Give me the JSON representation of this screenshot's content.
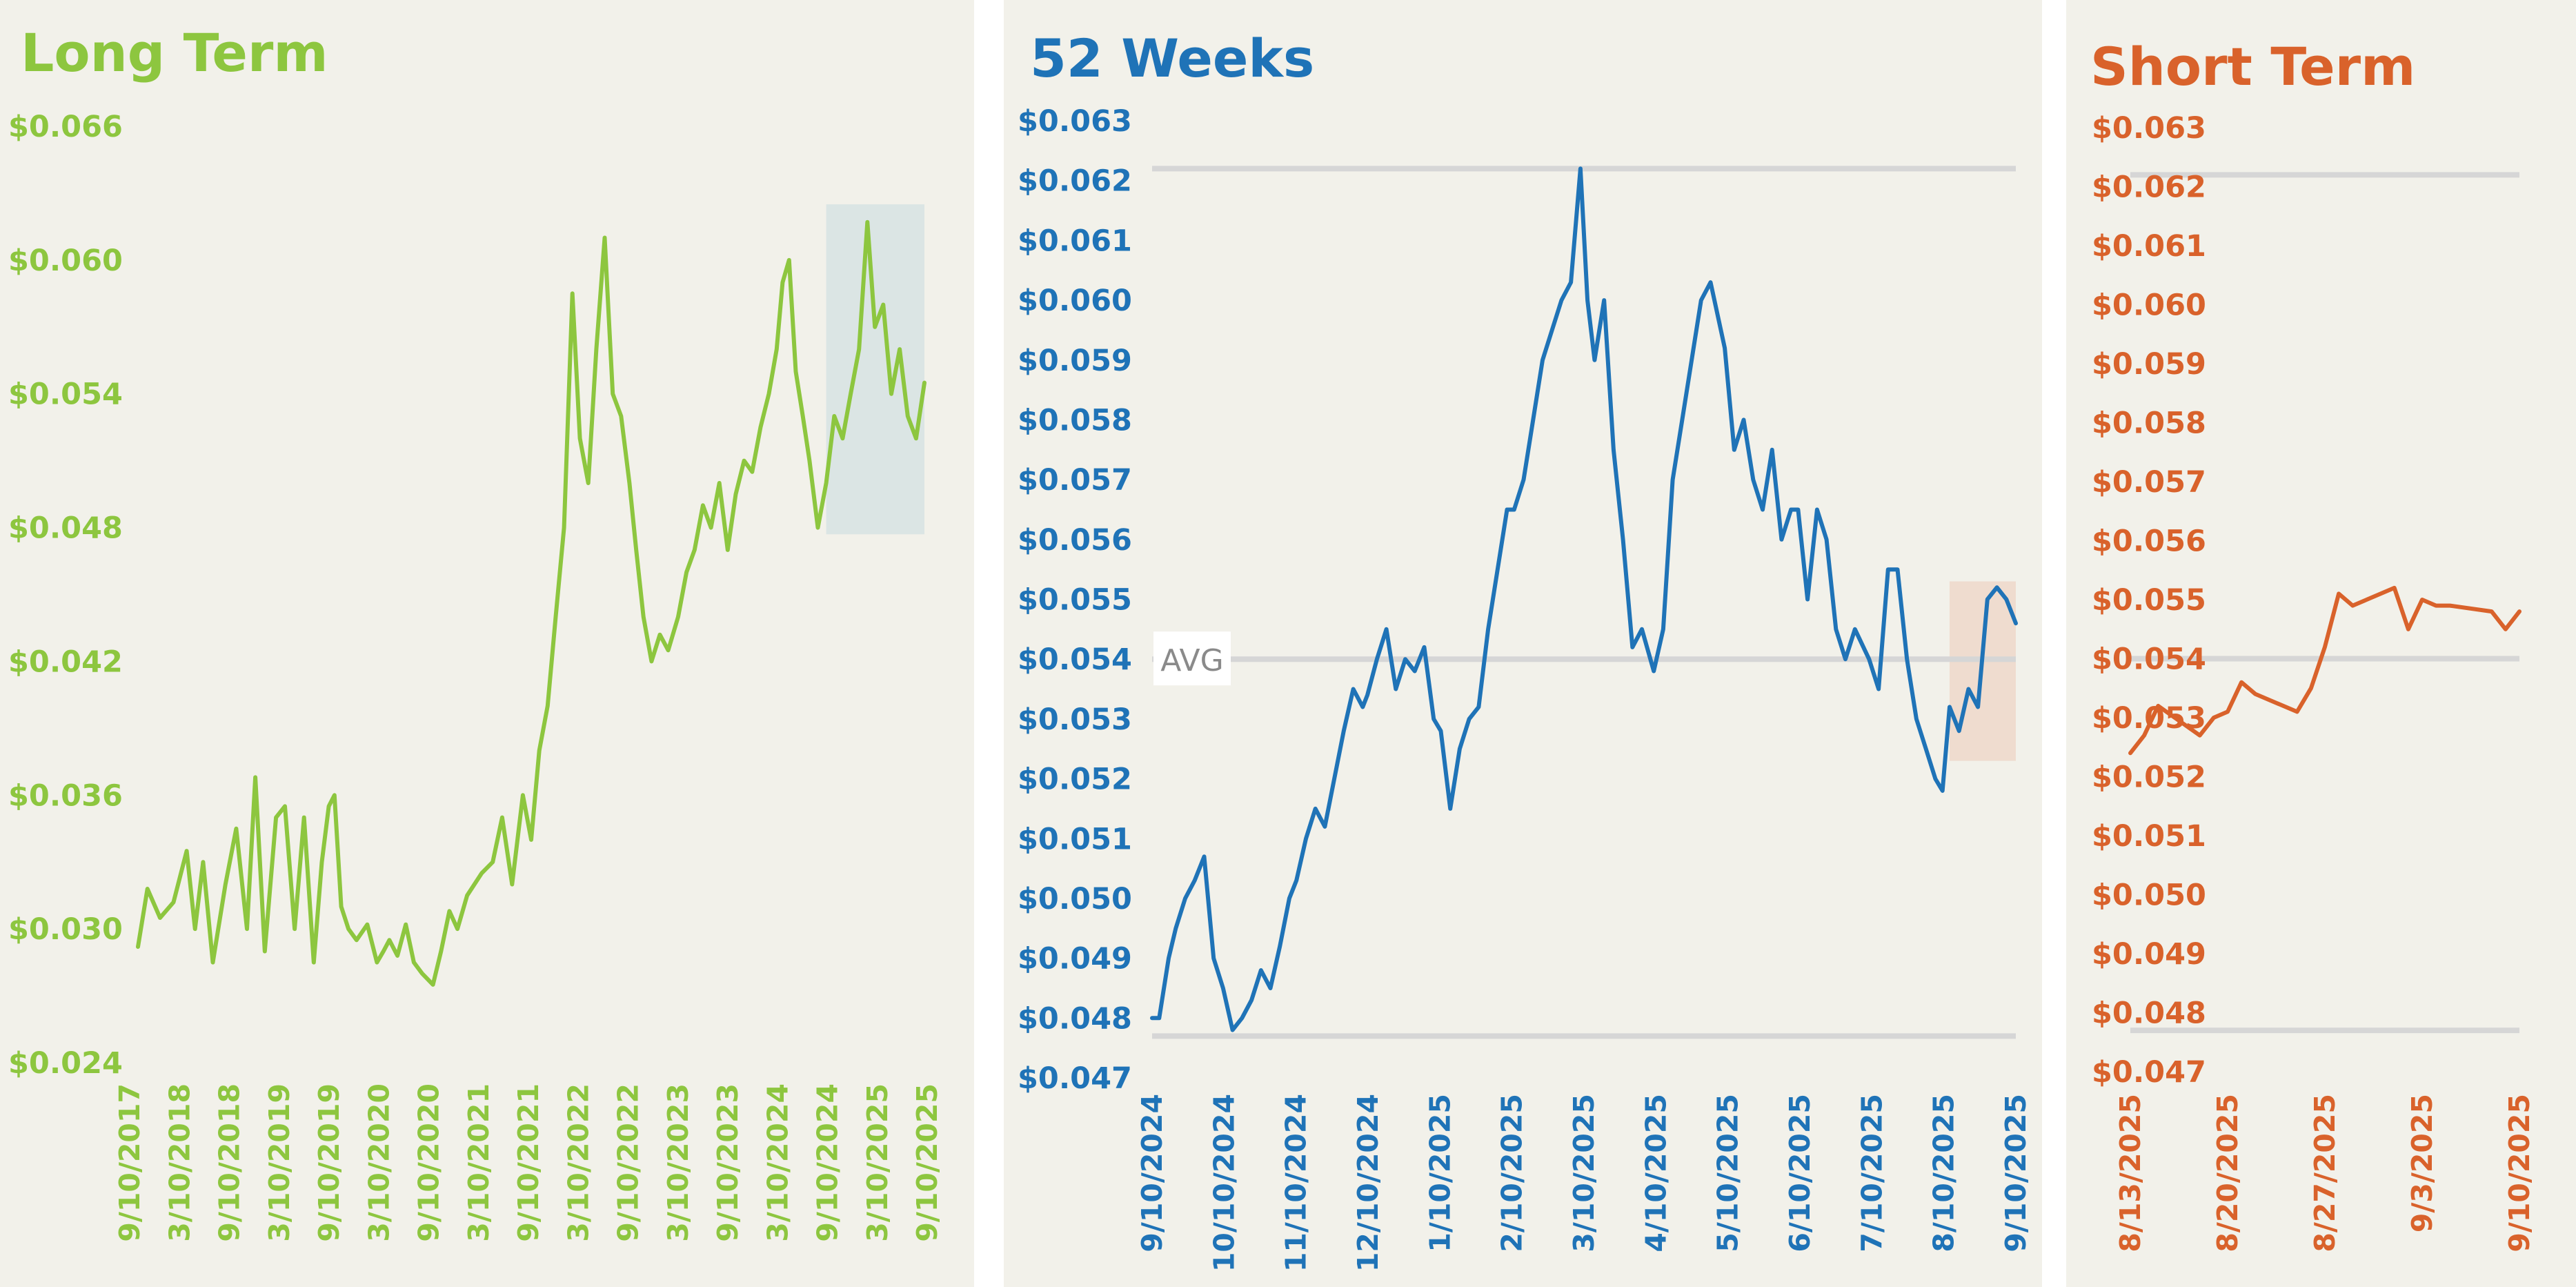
{
  "colors": {
    "long_term": "#8dc63f",
    "weeks52": "#1f73b7",
    "short_term": "#d9622b",
    "background": "#f2f1ea",
    "reference_lines": "#d6d6d6",
    "long_highlight": "#dbe5e4",
    "weeks_highlight": "#efdccf"
  },
  "chart_data": [
    {
      "type": "line",
      "title": "Long Term",
      "x_ticks": [
        "9/10/2017",
        "3/10/2018",
        "9/10/2018",
        "3/10/2019",
        "9/10/2019",
        "3/10/2020",
        "9/10/2020",
        "3/10/2021",
        "9/10/2021",
        "3/10/2022",
        "9/10/2022",
        "3/10/2023",
        "9/10/2023",
        "3/10/2024",
        "9/10/2024",
        "3/10/2025",
        "9/10/2025"
      ],
      "y_ticks": [
        "$0.066",
        "$0.060",
        "$0.054",
        "$0.048",
        "$0.042",
        "$0.036",
        "$0.030",
        "$0.024"
      ],
      "ylim": [
        0.024,
        0.066
      ],
      "xlim": [
        "9/10/2017",
        "9/10/2025"
      ],
      "highlight": {
        "x_start": "9/10/2024",
        "x_end": "9/10/2025",
        "y_min": 0.0477,
        "y_max": 0.0625
      },
      "series": [
        {
          "x": [
            "9/10/2017",
            "10/15/2017",
            "12/1/2017",
            "1/20/2018",
            "3/10/2018",
            "4/10/2018",
            "5/10/2018",
            "6/15/2018",
            "8/1/2018",
            "9/10/2018",
            "10/20/2018",
            "11/20/2018",
            "12/25/2018",
            "2/5/2019",
            "3/10/2019",
            "4/15/2019",
            "5/20/2019",
            "6/25/2019",
            "7/25/2019",
            "8/20/2019",
            "9/10/2019",
            "10/5/2019",
            "11/1/2019",
            "12/1/2019",
            "1/10/2020",
            "2/15/2020",
            "3/10/2020",
            "4/1/2020",
            "5/1/2020",
            "6/1/2020",
            "7/1/2020",
            "8/1/2020",
            "9/10/2020",
            "10/10/2020",
            "11/10/2020",
            "12/10/2020",
            "1/15/2021",
            "3/10/2021",
            "4/20/2021",
            "5/25/2021",
            "7/1/2021",
            "8/10/2021",
            "9/10/2021",
            "10/10/2021",
            "11/10/2021",
            "12/10/2021",
            "1/10/2022",
            "2/10/2022",
            "3/10/2022",
            "4/10/2022",
            "5/10/2022",
            "6/10/2022",
            "7/10/2022",
            "8/10/2022",
            "9/10/2022",
            "10/5/2022",
            "11/1/2022",
            "12/1/2022",
            "1/1/2023",
            "2/1/2023",
            "3/10/2023",
            "4/10/2023",
            "5/10/2023",
            "6/10/2023",
            "7/10/2023",
            "8/10/2023",
            "9/10/2023",
            "10/10/2023",
            "11/10/2023",
            "12/10/2023",
            "1/10/2024",
            "2/10/2024",
            "3/10/2024",
            "4/1/2024",
            "4/25/2024",
            "5/20/2024",
            "6/15/2024",
            "7/10/2024",
            "8/10/2024",
            "9/10/2024",
            "10/10/2024",
            "11/10/2024",
            "12/10/2024",
            "1/10/2025",
            "2/10/2025",
            "3/10/2025",
            "4/10/2025",
            "5/10/2025",
            "6/10/2025",
            "7/10/2025",
            "8/10/2025",
            "9/10/2025"
          ],
          "y": [
            0.0292,
            0.0318,
            0.0305,
            0.0312,
            0.0335,
            0.03,
            0.033,
            0.0285,
            0.032,
            0.0345,
            0.03,
            0.0368,
            0.029,
            0.035,
            0.0355,
            0.03,
            0.035,
            0.0285,
            0.033,
            0.0355,
            0.036,
            0.031,
            0.03,
            0.0295,
            0.0302,
            0.0285,
            0.029,
            0.0295,
            0.0288,
            0.0302,
            0.0285,
            0.028,
            0.0275,
            0.029,
            0.0308,
            0.03,
            0.0315,
            0.0325,
            0.033,
            0.035,
            0.032,
            0.036,
            0.034,
            0.038,
            0.04,
            0.044,
            0.048,
            0.0585,
            0.052,
            0.05,
            0.056,
            0.061,
            0.054,
            0.053,
            0.05,
            0.047,
            0.044,
            0.042,
            0.0432,
            0.0425,
            0.044,
            0.046,
            0.047,
            0.049,
            0.048,
            0.05,
            0.047,
            0.0495,
            0.051,
            0.0505,
            0.0525,
            0.054,
            0.056,
            0.059,
            0.06,
            0.055,
            0.053,
            0.051,
            0.048,
            0.05,
            0.053,
            0.052,
            0.054,
            0.056,
            0.0617,
            0.057,
            0.058,
            0.054,
            0.056,
            0.053,
            0.052,
            0.0545
          ]
        }
      ]
    },
    {
      "type": "line",
      "title": "52 Weeks",
      "x_ticks": [
        "9/10/2024",
        "10/10/2024",
        "11/10/2024",
        "12/10/2024",
        "1/10/2025",
        "2/10/2025",
        "3/10/2025",
        "4/10/2025",
        "5/10/2025",
        "6/10/2025",
        "7/10/2025",
        "8/10/2025",
        "9/10/2025"
      ],
      "y_ticks": [
        "$0.063",
        "$0.062",
        "$0.061",
        "$0.060",
        "$0.059",
        "$0.058",
        "$0.057",
        "$0.056",
        "$0.055",
        "$0.054",
        "$0.053",
        "$0.052",
        "$0.051",
        "$0.050",
        "$0.049",
        "$0.048",
        "$0.047"
      ],
      "ylim": [
        0.047,
        0.063
      ],
      "xlim": [
        "9/10/2024",
        "9/10/2025"
      ],
      "reference_lines": [
        {
          "y": 0.0622
        },
        {
          "y": 0.054,
          "label": "AVG"
        },
        {
          "y": 0.0477
        }
      ],
      "highlight": {
        "x_start": "8/13/2025",
        "x_end": "9/10/2025",
        "y_min": 0.0523,
        "y_max": 0.0553
      },
      "series": [
        {
          "x": [
            "9/10/2024",
            "9/13/2024",
            "9/17/2024",
            "9/20/2024",
            "9/24/2024",
            "9/28/2024",
            "10/2/2024",
            "10/6/2024",
            "10/10/2024",
            "10/14/2024",
            "10/18/2024",
            "10/22/2024",
            "10/26/2024",
            "10/30/2024",
            "11/3/2024",
            "11/7/2024",
            "11/10/2024",
            "11/14/2024",
            "11/18/2024",
            "11/22/2024",
            "11/26/2024",
            "11/30/2024",
            "12/4/2024",
            "12/8/2024",
            "12/10/2024",
            "12/14/2024",
            "12/18/2024",
            "12/22/2024",
            "12/26/2024",
            "12/30/2024",
            "1/3/2025",
            "1/7/2025",
            "1/10/2025",
            "1/14/2025",
            "1/18/2025",
            "1/22/2025",
            "1/26/2025",
            "1/30/2025",
            "2/3/2025",
            "2/7/2025",
            "2/10/2025",
            "2/14/2025",
            "2/18/2025",
            "2/22/2025",
            "2/26/2025",
            "3/2/2025",
            "3/6/2025",
            "3/10/2025",
            "3/13/2025",
            "3/16/2025",
            "3/20/2025",
            "3/24/2025",
            "3/28/2025",
            "4/1/2025",
            "4/5/2025",
            "4/10/2025",
            "4/14/2025",
            "4/18/2025",
            "4/22/2025",
            "4/26/2025",
            "4/30/2025",
            "5/4/2025",
            "5/10/2025",
            "5/14/2025",
            "5/18/2025",
            "5/22/2025",
            "5/26/2025",
            "5/30/2025",
            "6/3/2025",
            "6/7/2025",
            "6/10/2025",
            "6/14/2025",
            "6/18/2025",
            "6/22/2025",
            "6/26/2025",
            "6/30/2025",
            "7/4/2025",
            "7/10/2025",
            "7/14/2025",
            "7/18/2025",
            "7/22/2025",
            "7/26/2025",
            "7/30/2025",
            "8/3/2025",
            "8/7/2025",
            "8/10/2025",
            "8/13/2025",
            "8/17/2025",
            "8/21/2025",
            "8/25/2025",
            "8/29/2025",
            "9/2/2025",
            "9/6/2025",
            "9/10/2025"
          ],
          "y": [
            0.048,
            0.048,
            0.049,
            0.0495,
            0.05,
            0.0503,
            0.0507,
            0.049,
            0.0485,
            0.0478,
            0.048,
            0.0483,
            0.0488,
            0.0485,
            0.0492,
            0.05,
            0.0503,
            0.051,
            0.0515,
            0.0512,
            0.052,
            0.0528,
            0.0535,
            0.0532,
            0.0534,
            0.054,
            0.0545,
            0.0535,
            0.054,
            0.0538,
            0.0542,
            0.053,
            0.0528,
            0.0515,
            0.0525,
            0.053,
            0.0532,
            0.0545,
            0.0555,
            0.0565,
            0.0565,
            0.057,
            0.058,
            0.059,
            0.0595,
            0.06,
            0.0603,
            0.0622,
            0.06,
            0.059,
            0.06,
            0.0575,
            0.056,
            0.0542,
            0.0545,
            0.0538,
            0.0545,
            0.057,
            0.058,
            0.059,
            0.06,
            0.0603,
            0.0592,
            0.0575,
            0.058,
            0.057,
            0.0565,
            0.0575,
            0.056,
            0.0565,
            0.0565,
            0.055,
            0.0565,
            0.056,
            0.0545,
            0.054,
            0.0545,
            0.054,
            0.0535,
            0.0555,
            0.0555,
            0.054,
            0.053,
            0.0525,
            0.052,
            0.0518,
            0.0532,
            0.0528,
            0.0535,
            0.0532,
            0.055,
            0.0552,
            0.055,
            0.0546
          ]
        }
      ]
    },
    {
      "type": "line",
      "title": "Short Term",
      "x_ticks": [
        "8/13/2025",
        "8/20/2025",
        "8/27/2025",
        "9/3/2025",
        "9/10/2025"
      ],
      "y_ticks": [
        "$0.063",
        "$0.062",
        "$0.061",
        "$0.060",
        "$0.059",
        "$0.058",
        "$0.057",
        "$0.056",
        "$0.055",
        "$0.054",
        "$0.053",
        "$0.052",
        "$0.051",
        "$0.050",
        "$0.049",
        "$0.048",
        "$0.047"
      ],
      "ylim": [
        0.047,
        0.063
      ],
      "xlim": [
        "8/13/2025",
        "9/10/2025"
      ],
      "reference_lines": [
        {
          "y": 0.0622
        },
        {
          "y": 0.054
        },
        {
          "y": 0.0477
        }
      ],
      "series": [
        {
          "x": [
            "8/13/2025",
            "8/14/2025",
            "8/15/2025",
            "8/18/2025",
            "8/19/2025",
            "8/20/2025",
            "8/21/2025",
            "8/22/2025",
            "8/25/2025",
            "8/26/2025",
            "8/27/2025",
            "8/28/2025",
            "8/29/2025",
            "9/1/2025",
            "9/2/2025",
            "9/3/2025",
            "9/4/2025",
            "9/5/2025",
            "9/8/2025",
            "9/9/2025",
            "9/10/2025"
          ],
          "y": [
            0.0524,
            0.0527,
            0.0532,
            0.0527,
            0.053,
            0.0531,
            0.0536,
            0.0534,
            0.0531,
            0.0535,
            0.0542,
            0.0551,
            0.0549,
            0.0552,
            0.0545,
            0.055,
            0.0549,
            0.0549,
            0.0548,
            0.0545,
            0.0548
          ]
        }
      ]
    }
  ]
}
